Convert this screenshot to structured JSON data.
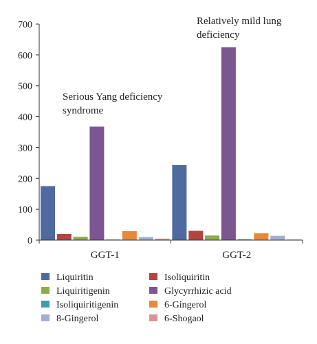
{
  "chart_data": {
    "type": "bar",
    "categories": [
      "GGT-1",
      "GGT-2"
    ],
    "series": [
      {
        "name": "Liquiritin",
        "color": "#4F6A9E",
        "values": [
          175,
          243
        ]
      },
      {
        "name": "Isoliquiritin",
        "color": "#B5433F",
        "values": [
          20,
          30
        ]
      },
      {
        "name": "Liquiritigenin",
        "color": "#8FAB4D",
        "values": [
          11,
          15
        ]
      },
      {
        "name": "Glycyrrhizic acid",
        "color": "#7B5690",
        "values": [
          368,
          625
        ]
      },
      {
        "name": "Isoliquiritigenin",
        "color": "#3F9BAE",
        "values": [
          2,
          3
        ]
      },
      {
        "name": "6-Gingerol",
        "color": "#E8893A",
        "values": [
          29,
          22
        ]
      },
      {
        "name": "8-Gingerol",
        "color": "#A2AED6",
        "values": [
          10,
          14
        ]
      },
      {
        "name": "6-Shogaol",
        "color": "#D99593",
        "values": [
          5,
          2
        ]
      }
    ],
    "ylim": [
      0,
      700
    ],
    "yticks": [
      0,
      100,
      200,
      300,
      400,
      500,
      600,
      700
    ],
    "grid": false,
    "legend_position": "bottom",
    "annotations": [
      {
        "lines": [
          "Serious Yang deficiency",
          "syndrome"
        ],
        "category": "GGT-1"
      },
      {
        "lines": [
          "Relatively mild lung",
          "deficiency"
        ],
        "category": "GGT-2"
      }
    ],
    "title": "",
    "xlabel": "",
    "ylabel": ""
  }
}
